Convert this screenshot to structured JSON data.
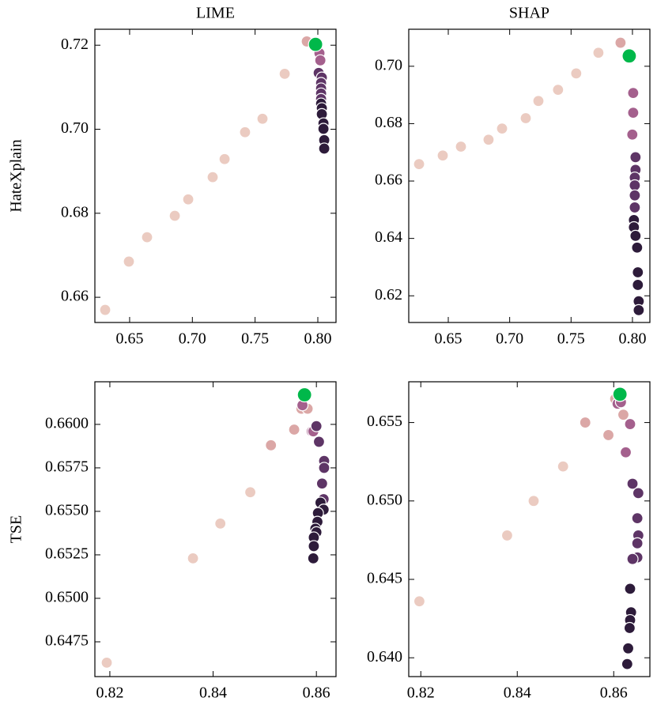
{
  "chart_data": [
    {
      "type": "scatter",
      "title": "LIME",
      "ylabel": "HateXplain",
      "xlim": [
        0.6223,
        0.8145
      ],
      "ylim": [
        0.654,
        0.7238
      ],
      "xticks": [
        0.65,
        {
          "value": 0.7,
          "label": "0.70"
        },
        0.75,
        {
          "value": 0.8,
          "label": "0.80"
        }
      ],
      "yticks": [
        0.66,
        0.68,
        {
          "value": 0.7,
          "label": "0.70"
        },
        0.72
      ],
      "series": [
        {
          "color": "#ebcbc1",
          "x": [
            0.6305,
            0.6494,
            0.6639,
            0.686,
            0.6967,
            0.7162,
            0.7257,
            0.742,
            0.7559,
            0.7736
          ],
          "values": [
            0.657,
            0.6685,
            0.6743,
            0.6794,
            0.6833,
            0.6886,
            0.6929,
            0.6993,
            0.7025,
            0.7132
          ]
        },
        {
          "color": "#dba7a6",
          "x": [
            0.7912
          ],
          "values": [
            0.7209
          ]
        },
        {
          "color": "#a4608d",
          "x": [
            0.8013,
            0.802
          ],
          "values": [
            0.7181,
            0.7164
          ]
        },
        {
          "color": "#5e3566",
          "x": [
            0.8007,
            0.8032,
            0.8026,
            0.8026,
            0.8026,
            0.8026
          ],
          "values": [
            0.7134,
            0.7123,
            0.711,
            0.7097,
            0.7085,
            0.7072
          ]
        },
        {
          "color": "#2d1b3a",
          "x": [
            0.8026,
            0.8032,
            0.8032,
            0.8045,
            0.8045,
            0.8051,
            0.8051
          ],
          "values": [
            0.7061,
            0.705,
            0.7036,
            0.7014,
            0.7001,
            0.6974,
            0.6954
          ]
        },
        {
          "color": "#00b84a",
          "x": [
            0.7982
          ],
          "values": [
            0.7202
          ]
        }
      ]
    },
    {
      "type": "scatter",
      "title": "SHAP",
      "xlim": [
        0.6178,
        0.8142
      ],
      "ylim": [
        0.6107,
        0.7129
      ],
      "xticks": [
        0.65,
        {
          "value": 0.7,
          "label": "0.70"
        },
        0.75,
        {
          "value": 0.8,
          "label": "0.80"
        }
      ],
      "yticks": [
        0.62,
        0.64,
        0.66,
        0.68,
        {
          "value": 0.7,
          "label": "0.70"
        }
      ],
      "series": [
        {
          "color": "#ebcbc1",
          "x": [
            0.6262,
            0.6455,
            0.6603,
            0.6828,
            0.6938,
            0.7131,
            0.7234,
            0.7394,
            0.7542,
            0.7723
          ],
          "values": [
            0.6659,
            0.6689,
            0.672,
            0.6744,
            0.6783,
            0.6819,
            0.6879,
            0.6918,
            0.6975,
            0.7047
          ]
        },
        {
          "color": "#dba7a6",
          "x": [
            0.7903
          ],
          "values": [
            0.7082
          ]
        },
        {
          "color": "#a4608d",
          "x": [
            0.8006,
            0.8006,
            0.7999
          ],
          "values": [
            0.6907,
            0.6838,
            0.6762
          ]
        },
        {
          "color": "#5e3566",
          "x": [
            0.8025,
            0.8025,
            0.8019,
            0.8019,
            0.8019,
            0.8019
          ],
          "values": [
            0.6683,
            0.6639,
            0.6612,
            0.6585,
            0.655,
            0.6508
          ]
        },
        {
          "color": "#2d1b3a",
          "x": [
            0.8012,
            0.8012,
            0.8025,
            0.8038,
            0.8044,
            0.8044,
            0.8051,
            0.8051
          ],
          "values": [
            0.6464,
            0.6439,
            0.6409,
            0.6368,
            0.6282,
            0.6238,
            0.6181,
            0.615
          ]
        },
        {
          "color": "#00b84a",
          "x": [
            0.7974
          ],
          "values": [
            0.7036
          ]
        }
      ]
    },
    {
      "type": "scatter",
      "ylabel": "TSE",
      "xlim": [
        0.8171,
        0.8638
      ],
      "ylim": [
        0.6455,
        0.66245
      ],
      "xticks": [
        0.82,
        0.84,
        0.86
      ],
      "yticks": [
        0.6475,
        {
          "value": 0.65,
          "label": "0.6500"
        },
        0.6525,
        {
          "value": 0.655,
          "label": "0.6550"
        },
        0.6575,
        {
          "value": 0.66,
          "label": "0.6600"
        }
      ],
      "series": [
        {
          "color": "#ebcbc1",
          "x": [
            0.8194,
            0.8361,
            0.8414,
            0.8472
          ],
          "values": [
            0.6463,
            0.6523,
            0.6543,
            0.6561
          ]
        },
        {
          "color": "#dba7a6",
          "x": [
            0.8512,
            0.8557,
            0.8571,
            0.8583
          ],
          "values": [
            0.6588,
            0.6597,
            0.6609,
            0.6609
          ]
        },
        {
          "color": "#a4608d",
          "x": [
            0.8573,
            0.8591,
            0.8594
          ],
          "values": [
            0.6611,
            0.6596,
            0.6596
          ]
        },
        {
          "color": "#5e3566",
          "x": [
            0.86,
            0.8605,
            0.8615,
            0.8615,
            0.8611,
            0.8614
          ],
          "values": [
            0.6599,
            0.659,
            0.6579,
            0.6575,
            0.6566,
            0.6557
          ]
        },
        {
          "color": "#2d1b3a",
          "x": [
            0.8608,
            0.8614,
            0.8603,
            0.8602,
            0.8598,
            0.86,
            0.8595,
            0.8595,
            0.8594
          ],
          "values": [
            0.6555,
            0.6551,
            0.6549,
            0.6544,
            0.654,
            0.6538,
            0.6535,
            0.653,
            0.6523
          ]
        },
        {
          "color": "#00b84a",
          "x": [
            0.8577
          ],
          "values": [
            0.6617
          ]
        }
      ]
    },
    {
      "type": "scatter",
      "xlim": [
        0.8175,
        0.8675
      ],
      "ylim": [
        0.6388,
        0.6576
      ],
      "xticks": [
        0.82,
        0.84,
        0.86
      ],
      "yticks": [
        {
          "value": 0.64,
          "label": "0.640"
        },
        0.645,
        {
          "value": 0.65,
          "label": "0.650"
        },
        0.655
      ],
      "series": [
        {
          "color": "#ebcbc1",
          "x": [
            0.8197,
            0.8379,
            0.8434,
            0.8495
          ],
          "values": [
            0.6436,
            0.6478,
            0.65,
            0.6522
          ]
        },
        {
          "color": "#dba7a6",
          "x": [
            0.8541,
            0.8589,
            0.8603,
            0.862
          ],
          "values": [
            0.655,
            0.6542,
            0.6565,
            0.6555
          ]
        },
        {
          "color": "#a4608d",
          "x": [
            0.8608,
            0.8615,
            0.8625,
            0.8634
          ],
          "values": [
            0.6562,
            0.6563,
            0.6531,
            0.6549
          ]
        },
        {
          "color": "#5e3566",
          "x": [
            0.8639,
            0.8651,
            0.8649,
            0.8651,
            0.8649,
            0.8649,
            0.8639
          ],
          "values": [
            0.6511,
            0.6505,
            0.6489,
            0.6478,
            0.6473,
            0.6464,
            0.6463
          ]
        },
        {
          "color": "#2d1b3a",
          "x": [
            0.8634,
            0.8636,
            0.8634,
            0.8633,
            0.863,
            0.8628
          ],
          "values": [
            0.6444,
            0.6429,
            0.6424,
            0.6419,
            0.6406,
            0.6396
          ]
        },
        {
          "color": "#00b84a",
          "x": [
            0.8613
          ],
          "values": [
            0.6568
          ]
        }
      ]
    }
  ]
}
